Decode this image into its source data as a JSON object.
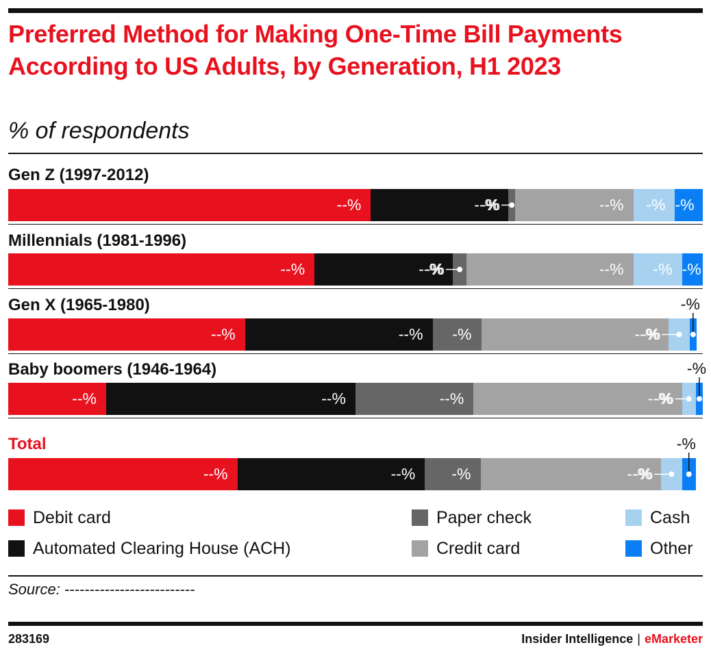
{
  "title": "Preferred Method for Making One-Time Bill Payments According to US Adults, by Generation, H1 2023",
  "subtitle": "% of respondents",
  "source": "Source: --------------------------",
  "footer": {
    "id": "283169",
    "brand_left": "Insider Intelligence",
    "brand_sep": "|",
    "brand_right": "eMarketer"
  },
  "colors": {
    "debit": "#e8111e",
    "ach": "#111111",
    "paper": "#666666",
    "credit": "#a3a3a3",
    "cash": "#a8d1f0",
    "other": "#0a7ff5"
  },
  "chart_data": {
    "type": "bar",
    "orientation": "horizontal-stacked-100",
    "title": "Preferred Method for Making One-Time Bill Payments According to US Adults, by Generation, H1 2023",
    "subtitle": "% of respondents",
    "categories": [
      "Gen Z (1997-2012)",
      "Millennials (1981-1996)",
      "Gen X (1965-1980)",
      "Baby boomers (1946-1964)",
      "Total"
    ],
    "series": [
      {
        "name": "Debit card",
        "values": [
          52.2,
          44.1,
          34.1,
          14.1,
          33.0
        ],
        "labels": [
          "--%",
          "--%",
          "--%",
          "--%",
          "--%"
        ]
      },
      {
        "name": "Automated Clearing House (ACH)",
        "values": [
          19.8,
          19.9,
          27.0,
          35.9,
          27.0
        ],
        "labels": [
          "--%",
          "--%",
          "--%",
          "--%",
          "--%"
        ]
      },
      {
        "name": "Paper check",
        "values": [
          1.0,
          2.0,
          7.0,
          17.0,
          8.0
        ],
        "labels": [
          "-%",
          "-%",
          "-%",
          "--%",
          "-%"
        ]
      },
      {
        "name": "Credit card",
        "values": [
          17.0,
          24.0,
          27.0,
          30.0,
          26.0
        ],
        "labels": [
          "--%",
          "--%",
          "--%",
          "--%",
          "--%"
        ]
      },
      {
        "name": "Cash",
        "values": [
          6.0,
          7.0,
          3.0,
          2.0,
          3.0
        ],
        "labels": [
          "-%",
          "-%",
          "-%",
          "-%",
          "-%"
        ]
      },
      {
        "name": "Other",
        "values": [
          4.0,
          3.0,
          1.0,
          1.0,
          2.0
        ],
        "labels": [
          "-%",
          "-%",
          "-%",
          "-%",
          "-%"
        ]
      }
    ],
    "xlim": [
      0,
      100
    ],
    "legend": "bottom",
    "grid": false
  }
}
